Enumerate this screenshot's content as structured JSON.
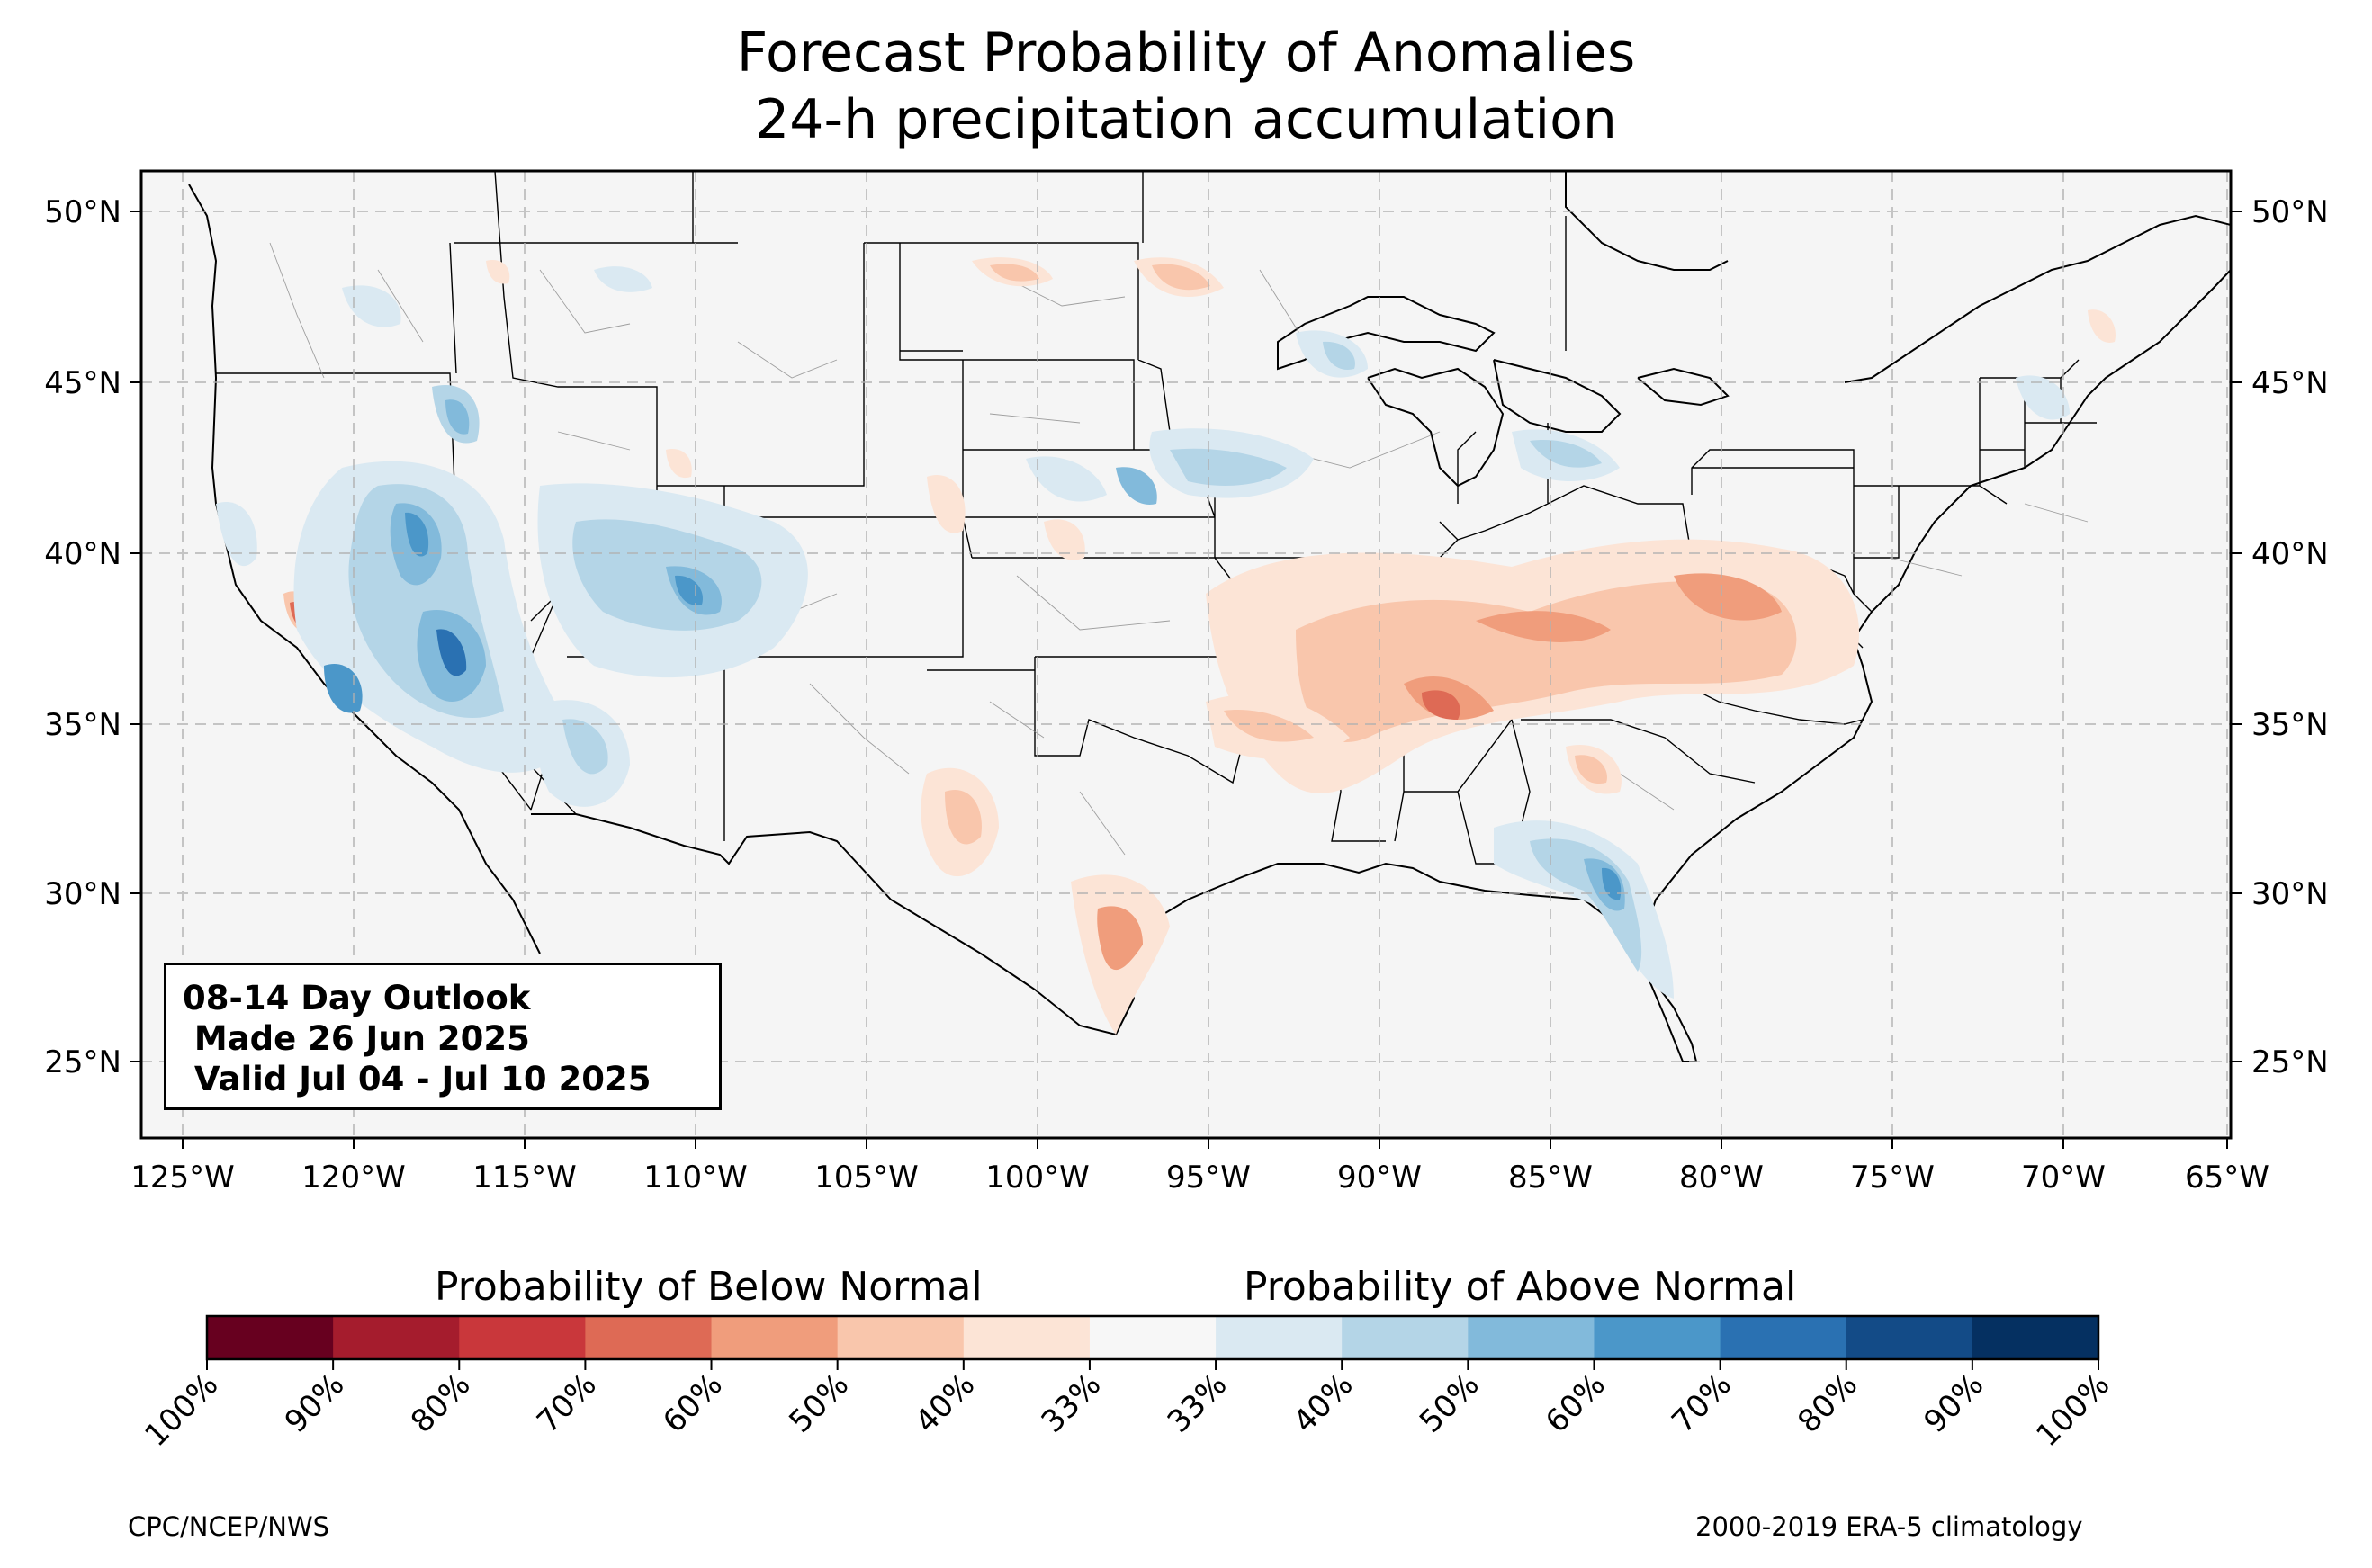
{
  "title_line1": "Forecast Probability of Anomalies",
  "title_line2": "24-h precipitation accumulation",
  "longitude_ticks": [
    "125°W",
    "120°W",
    "115°W",
    "110°W",
    "105°W",
    "100°W",
    "95°W",
    "90°W",
    "85°W",
    "80°W",
    "75°W",
    "70°W",
    "65°W"
  ],
  "latitude_ticks": [
    "50°N",
    "45°N",
    "40°N",
    "35°N",
    "30°N",
    "25°N"
  ],
  "outlook": {
    "line1": "08-14 Day Outlook",
    "line2": " Made 26 Jun 2025",
    "line3": " Valid Jul 04 - Jul 10 2025"
  },
  "colorbar": {
    "below_label": "Probability of Below Normal",
    "above_label": "Probability of Above Normal",
    "tick_labels": [
      "100%",
      "90%",
      "80%",
      "70%",
      "60%",
      "50%",
      "40%",
      "33%",
      "33%",
      "40%",
      "50%",
      "60%",
      "70%",
      "80%",
      "90%",
      "100%"
    ],
    "colors": [
      "#67001f",
      "#a51c2d",
      "#c9373b",
      "#de6a55",
      "#f09d7c",
      "#f9c6ac",
      "#fce4d6",
      "#f7f7f7",
      "#dae9f2",
      "#b4d5e7",
      "#82badb",
      "#4b97c9",
      "#2a71b2",
      "#134b87",
      "#053061"
    ]
  },
  "credit_left": "CPC/NCEP/NWS",
  "credit_right": "2000-2019 ERA-5 climatology"
}
